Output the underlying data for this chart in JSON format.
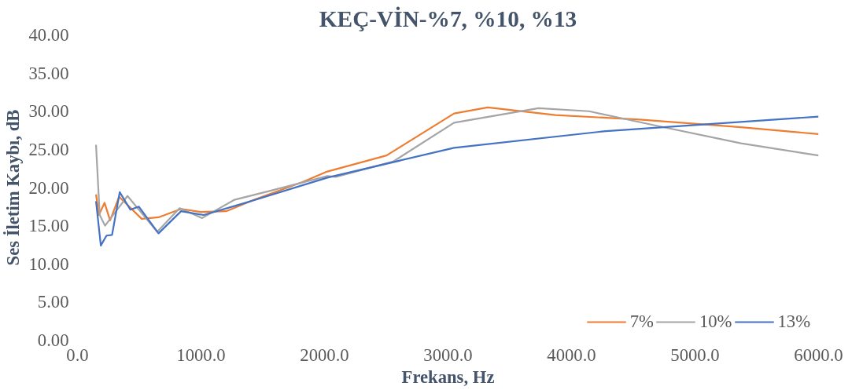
{
  "chart_data": {
    "type": "line",
    "title": "KEÇ-VİN-%7, %10, %13",
    "xlabel": "Frekans, Hz",
    "ylabel": "Ses İletim Kaybı, dB",
    "xlim": [
      0,
      6000
    ],
    "xticks": [
      {
        "value": 0,
        "label": "0.0"
      },
      {
        "value": 1000,
        "label": "1000.0"
      },
      {
        "value": 2000,
        "label": "2000.0"
      },
      {
        "value": 3000,
        "label": "3000.0"
      },
      {
        "value": 4000,
        "label": "4000.0"
      },
      {
        "value": 5000,
        "label": "5000.0"
      },
      {
        "value": 6000,
        "label": "6000.0"
      }
    ],
    "ylim": [
      0,
      40
    ],
    "yticks": [
      {
        "value": 0,
        "label": "0.00"
      },
      {
        "value": 5,
        "label": "5.00"
      },
      {
        "value": 10,
        "label": "10.00"
      },
      {
        "value": 15,
        "label": "15.00"
      },
      {
        "value": 20,
        "label": "20.00"
      },
      {
        "value": 25,
        "label": "25.00"
      },
      {
        "value": 30,
        "label": "30.00"
      },
      {
        "value": 35,
        "label": "35.00"
      },
      {
        "value": 40,
        "label": "40.00"
      }
    ],
    "grid": false,
    "legend": "bottom right",
    "line_style": "solid",
    "marker": "none",
    "series": [
      {
        "name": "7%",
        "color": "#ed7d31",
        "x": [
          150,
          173,
          219,
          264,
          337,
          520,
          656,
          839,
          998,
          1203,
          1431,
          1818,
          2023,
          2502,
          3049,
          3322,
          3869,
          4552,
          5372,
          6000
        ],
        "values": [
          19.1,
          16.4,
          18.0,
          15.7,
          18.8,
          15.9,
          16.1,
          17.2,
          16.8,
          16.9,
          18.4,
          20.7,
          22.1,
          24.2,
          29.7,
          30.5,
          29.5,
          28.9,
          27.9,
          27.0
        ]
      },
      {
        "name": "10%",
        "color": "#a5a5a5",
        "x": [
          150,
          180,
          223,
          405,
          645,
          827,
          1009,
          1271,
          1567,
          2023,
          2092,
          2556,
          3049,
          3732,
          4142,
          4689,
          5372,
          6000
        ],
        "values": [
          25.6,
          16.4,
          15.0,
          18.9,
          14.2,
          17.3,
          16.0,
          18.4,
          19.6,
          21.5,
          21.4,
          23.4,
          28.5,
          30.4,
          30.0,
          28.1,
          25.8,
          24.2
        ]
      },
      {
        "name": "13%",
        "color": "#4472c4",
        "x": [
          150,
          189,
          235,
          280,
          342,
          428,
          497,
          656,
          839,
          1021,
          1340,
          2023,
          3049,
          4279,
          6000
        ],
        "values": [
          18.2,
          12.4,
          13.7,
          13.8,
          19.4,
          17.1,
          17.5,
          14.0,
          16.9,
          16.4,
          17.9,
          21.3,
          25.2,
          27.4,
          29.3
        ]
      }
    ]
  }
}
